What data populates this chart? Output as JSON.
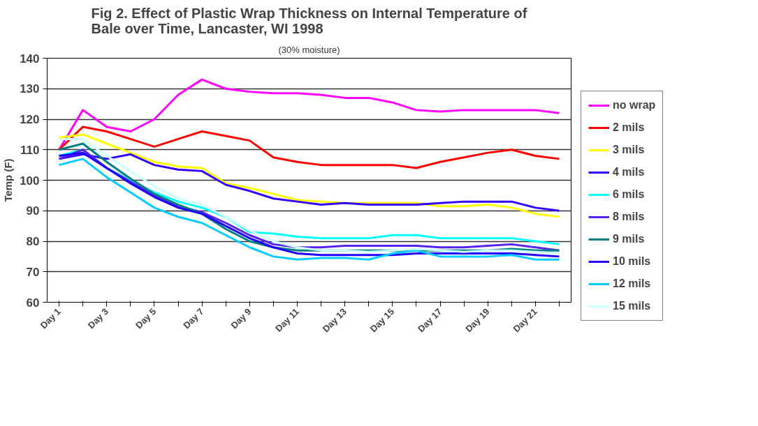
{
  "chart_data": {
    "type": "line",
    "title": "Fig 2. Effect of Plastic Wrap Thickness on Internal Temperature of Bale over Time, Lancaster, WI 1998",
    "subtitle": "(30% moisture)",
    "ylabel": "Temp (F)",
    "categories": [
      "Day 1",
      null,
      "Day 3",
      null,
      "Day 5",
      null,
      "Day 7",
      null,
      "Day 9",
      null,
      "Day 11",
      null,
      "Day 13",
      null,
      "Day 15",
      null,
      "Day 17",
      null,
      "Day 19",
      null,
      "Day 21",
      null
    ],
    "ylim": [
      60,
      140
    ],
    "yticks": [
      60,
      70,
      80,
      90,
      100,
      110,
      120,
      130,
      140
    ],
    "grid": "y",
    "legend": "right",
    "marker": "none",
    "line_style": "solid",
    "series": [
      {
        "name": "no wrap",
        "color": "#ff00ff",
        "values": [
          110,
          123,
          117.5,
          116,
          120,
          128,
          133,
          130,
          129,
          128.5,
          128.5,
          128,
          127,
          127,
          125.5,
          123,
          122.5,
          123,
          123,
          123,
          123,
          122
        ]
      },
      {
        "name": "2 mils",
        "color": "#ff0000",
        "values": [
          110,
          117.5,
          116,
          113.5,
          111,
          113.5,
          116,
          114.5,
          113,
          107.5,
          106,
          105,
          105,
          105,
          105,
          104,
          106,
          107.5,
          109,
          110,
          108,
          107
        ]
      },
      {
        "name": "3 mils",
        "color": "#ffff00",
        "values": [
          114,
          115,
          112,
          109,
          106,
          104.5,
          104,
          99,
          97.5,
          95.5,
          93.5,
          93,
          92.5,
          92.5,
          92.5,
          92.5,
          91.5,
          91.5,
          92,
          91,
          89,
          88
        ]
      },
      {
        "name": "4 mils",
        "color": "#3300ff",
        "values": [
          107,
          108.5,
          107,
          108.5,
          105,
          103.5,
          103,
          98.5,
          96.5,
          94,
          93,
          92,
          92.5,
          92,
          92,
          92,
          92.5,
          93,
          93,
          93,
          91,
          90
        ]
      },
      {
        "name": "6 mils",
        "color": "#00ffff",
        "values": [
          108,
          110,
          104,
          100,
          96,
          93,
          91,
          88,
          83,
          82.5,
          81.5,
          81,
          81,
          81,
          82,
          82,
          81,
          81,
          81,
          81,
          80,
          79
        ]
      },
      {
        "name": "8 mils",
        "color": "#5522ee",
        "values": [
          107,
          110,
          104,
          99.5,
          95,
          91.5,
          89.5,
          86,
          82,
          79,
          78,
          78,
          78.5,
          78.5,
          78.5,
          78.5,
          78,
          78,
          78.5,
          79,
          78,
          77
        ]
      },
      {
        "name": "9 mils",
        "color": "#008080",
        "values": [
          110,
          112,
          106,
          100.5,
          95.5,
          92,
          89,
          84,
          80,
          78,
          77,
          77,
          77,
          77,
          77,
          77,
          77,
          77,
          77,
          77.5,
          77,
          77
        ]
      },
      {
        "name": "10 mils",
        "color": "#2200ff",
        "values": [
          108,
          109,
          104,
          99,
          94.5,
          91,
          89,
          85,
          81,
          78,
          76,
          75.5,
          75.5,
          75.5,
          75.5,
          76,
          76,
          76,
          76,
          76,
          75.5,
          75
        ]
      },
      {
        "name": "12 mils",
        "color": "#00ccff",
        "values": [
          105,
          107,
          101,
          96,
          91,
          88,
          86,
          82,
          78,
          75,
          74,
          74.5,
          74.5,
          74,
          76,
          77,
          75,
          75,
          75,
          75.5,
          74,
          74
        ]
      },
      {
        "name": "15 mils",
        "color": "#ccffff",
        "values": [
          113.5,
          113.5,
          108,
          103,
          98,
          94,
          92,
          88,
          83.5,
          80,
          78,
          77,
          77,
          76.5,
          77,
          77.5,
          77,
          76.5,
          77,
          77,
          76.5,
          76
        ]
      }
    ]
  }
}
